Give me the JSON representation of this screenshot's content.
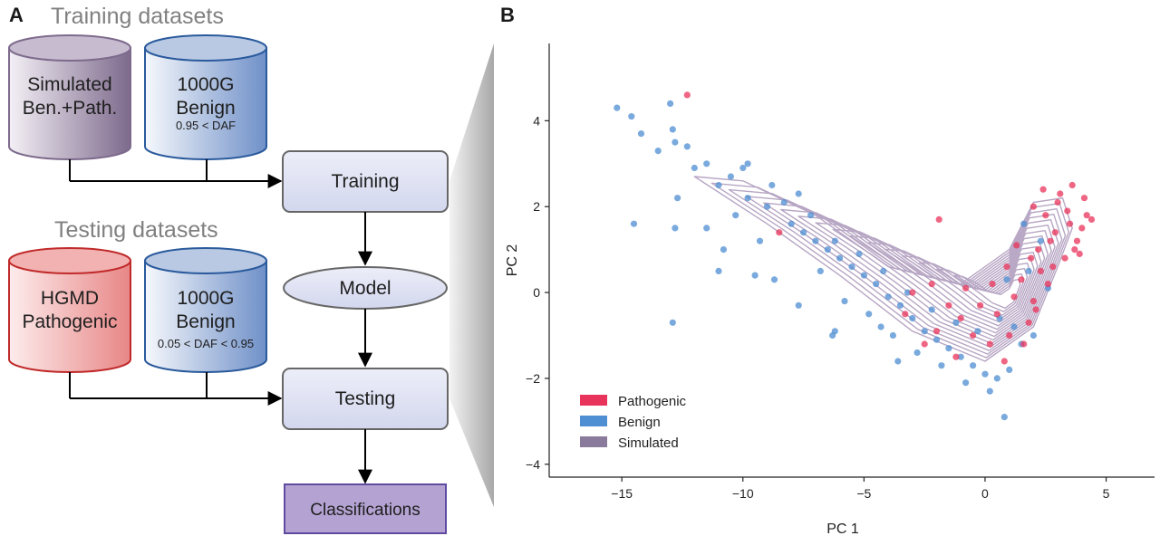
{
  "panel_a": {
    "letter": "A",
    "training_title": "Training datasets",
    "testing_title": "Testing datasets",
    "cyl_simulated": {
      "line1": "Simulated",
      "line2": "Ben.+Path.",
      "sub": ""
    },
    "cyl_1000g_train": {
      "line1": "1000G",
      "line2": "Benign",
      "sub": "0.95 < DAF"
    },
    "cyl_hgmd": {
      "line1": "HGMD",
      "line2": "Pathogenic",
      "sub": ""
    },
    "cyl_1000g_test": {
      "line1": "1000G",
      "line2": "Benign",
      "sub": "0.05 < DAF < 0.95"
    },
    "training_box": "Training",
    "model_box": "Model",
    "testing_box": "Testing",
    "classifications_box": "Classifications"
  },
  "panel_b": {
    "letter": "B"
  },
  "colors": {
    "pathogenic": "#e8335a",
    "benign": "#4e8ed2",
    "simulated": "#8a7a9c",
    "contour": "#b7a6c4"
  },
  "chart_data": {
    "type": "scatter",
    "xlabel": "PC 1",
    "ylabel": "PC 2",
    "xlim": [
      -18,
      7
    ],
    "ylim": [
      -4.3,
      5.8
    ],
    "xticks": [
      -15,
      -10,
      -5,
      0,
      5
    ],
    "yticks": [
      -4,
      -2,
      0,
      2,
      4
    ],
    "legend_position": "lower-left",
    "legend": [
      "Pathogenic",
      "Benign",
      "Simulated"
    ],
    "series": [
      {
        "name": "Pathogenic",
        "color": "#e8335a",
        "points": [
          [
            -12.3,
            4.6
          ],
          [
            -1.9,
            1.7
          ],
          [
            -8.5,
            1.4
          ],
          [
            2.0,
            2.0
          ],
          [
            2.5,
            1.8
          ],
          [
            3.0,
            2.1
          ],
          [
            3.5,
            1.6
          ],
          [
            4.0,
            1.5
          ],
          [
            4.2,
            1.8
          ],
          [
            3.8,
            1.2
          ],
          [
            2.2,
            1.0
          ],
          [
            2.8,
            0.6
          ],
          [
            3.3,
            0.8
          ],
          [
            2.6,
            0.2
          ],
          [
            2.0,
            -0.2
          ],
          [
            1.5,
            0.3
          ],
          [
            1.8,
            -0.7
          ],
          [
            1.0,
            -1.0
          ],
          [
            0.5,
            -0.5
          ],
          [
            0.2,
            -1.2
          ],
          [
            -0.5,
            -1.0
          ],
          [
            -1.0,
            -0.6
          ],
          [
            -1.5,
            -0.3
          ],
          [
            -2.0,
            -0.9
          ],
          [
            -2.5,
            -1.2
          ],
          [
            -3.0,
            0.0
          ],
          [
            -3.3,
            -0.5
          ],
          [
            -1.2,
            -1.5
          ],
          [
            0.8,
            -1.6
          ],
          [
            1.2,
            -0.1
          ],
          [
            2.4,
            2.4
          ],
          [
            3.1,
            2.3
          ],
          [
            3.6,
            2.5
          ],
          [
            4.4,
            1.7
          ],
          [
            2.9,
            1.4
          ],
          [
            2.3,
            0.5
          ],
          [
            1.6,
            -1.2
          ],
          [
            0.3,
            0.2
          ],
          [
            -0.8,
            0.1
          ],
          [
            -2.2,
            0.2
          ],
          [
            3.9,
            0.9
          ],
          [
            3.4,
            1.9
          ],
          [
            2.7,
            1.2
          ],
          [
            1.9,
            0.8
          ],
          [
            1.3,
            1.1
          ],
          [
            0.9,
            0.6
          ],
          [
            -0.2,
            -0.3
          ],
          [
            4.1,
            2.2
          ],
          [
            3.7,
            1.0
          ],
          [
            2.1,
            -0.4
          ]
        ]
      },
      {
        "name": "Benign",
        "color": "#4e8ed2",
        "points": [
          [
            -15.2,
            4.3
          ],
          [
            -14.6,
            4.1
          ],
          [
            -14.2,
            3.7
          ],
          [
            -13.0,
            4.4
          ],
          [
            -12.9,
            3.8
          ],
          [
            -12.3,
            3.4
          ],
          [
            -12.8,
            3.5
          ],
          [
            -13.5,
            3.3
          ],
          [
            -12.0,
            2.9
          ],
          [
            -11.5,
            3.0
          ],
          [
            -10.5,
            2.7
          ],
          [
            -10.0,
            2.9
          ],
          [
            -9.8,
            3.0
          ],
          [
            -11.0,
            2.5
          ],
          [
            -12.7,
            2.2
          ],
          [
            -14.5,
            1.6
          ],
          [
            -12.8,
            1.5
          ],
          [
            -11.5,
            1.5
          ],
          [
            -10.8,
            1.0
          ],
          [
            -11.0,
            0.5
          ],
          [
            -9.8,
            2.2
          ],
          [
            -9.0,
            2.0
          ],
          [
            -8.3,
            2.1
          ],
          [
            -7.7,
            2.3
          ],
          [
            -8.0,
            1.6
          ],
          [
            -7.5,
            1.4
          ],
          [
            -7.0,
            1.2
          ],
          [
            -6.5,
            1.0
          ],
          [
            -6.0,
            0.8
          ],
          [
            -5.5,
            0.6
          ],
          [
            -5.0,
            0.4
          ],
          [
            -4.5,
            0.2
          ],
          [
            -4.0,
            -0.1
          ],
          [
            -3.5,
            -0.3
          ],
          [
            -3.0,
            -0.6
          ],
          [
            -2.5,
            -0.9
          ],
          [
            -2.0,
            -1.1
          ],
          [
            -1.5,
            -1.3
          ],
          [
            -1.0,
            -1.5
          ],
          [
            -0.5,
            -1.7
          ],
          [
            0.0,
            -1.9
          ],
          [
            0.5,
            -2.0
          ],
          [
            1.0,
            -1.8
          ],
          [
            0.8,
            -2.9
          ],
          [
            -6.2,
            -0.9
          ],
          [
            -6.3,
            -1.0
          ],
          [
            -12.9,
            -0.7
          ],
          [
            -8.7,
            0.3
          ],
          [
            -9.5,
            0.4
          ],
          [
            -7.7,
            -0.3
          ],
          [
            -5.8,
            -0.2
          ],
          [
            -4.8,
            -0.5
          ],
          [
            -4.3,
            -0.8
          ],
          [
            -3.8,
            -1.0
          ],
          [
            -2.8,
            -1.4
          ],
          [
            -1.8,
            -1.7
          ],
          [
            -0.8,
            -2.1
          ],
          [
            0.2,
            -2.3
          ],
          [
            1.5,
            -1.2
          ],
          [
            2.0,
            -1.0
          ],
          [
            1.2,
            -0.8
          ],
          [
            0.6,
            -0.6
          ],
          [
            -0.3,
            -0.9
          ],
          [
            -1.2,
            -0.7
          ],
          [
            -2.2,
            -0.4
          ],
          [
            -3.2,
            0.0
          ],
          [
            -4.2,
            0.5
          ],
          [
            -5.2,
            0.9
          ],
          [
            -6.2,
            1.2
          ],
          [
            -7.2,
            1.8
          ],
          [
            -8.8,
            2.5
          ],
          [
            -9.3,
            1.2
          ],
          [
            -10.3,
            1.8
          ],
          [
            1.8,
            0.5
          ],
          [
            2.3,
            1.2
          ],
          [
            1.6,
            1.6
          ],
          [
            2.6,
            0.1
          ],
          [
            0.9,
            0.3
          ],
          [
            -6.8,
            0.5
          ],
          [
            -3.6,
            -1.6
          ]
        ]
      },
      {
        "name": "Simulated",
        "color": "#8a7a9c",
        "points": []
      }
    ]
  }
}
